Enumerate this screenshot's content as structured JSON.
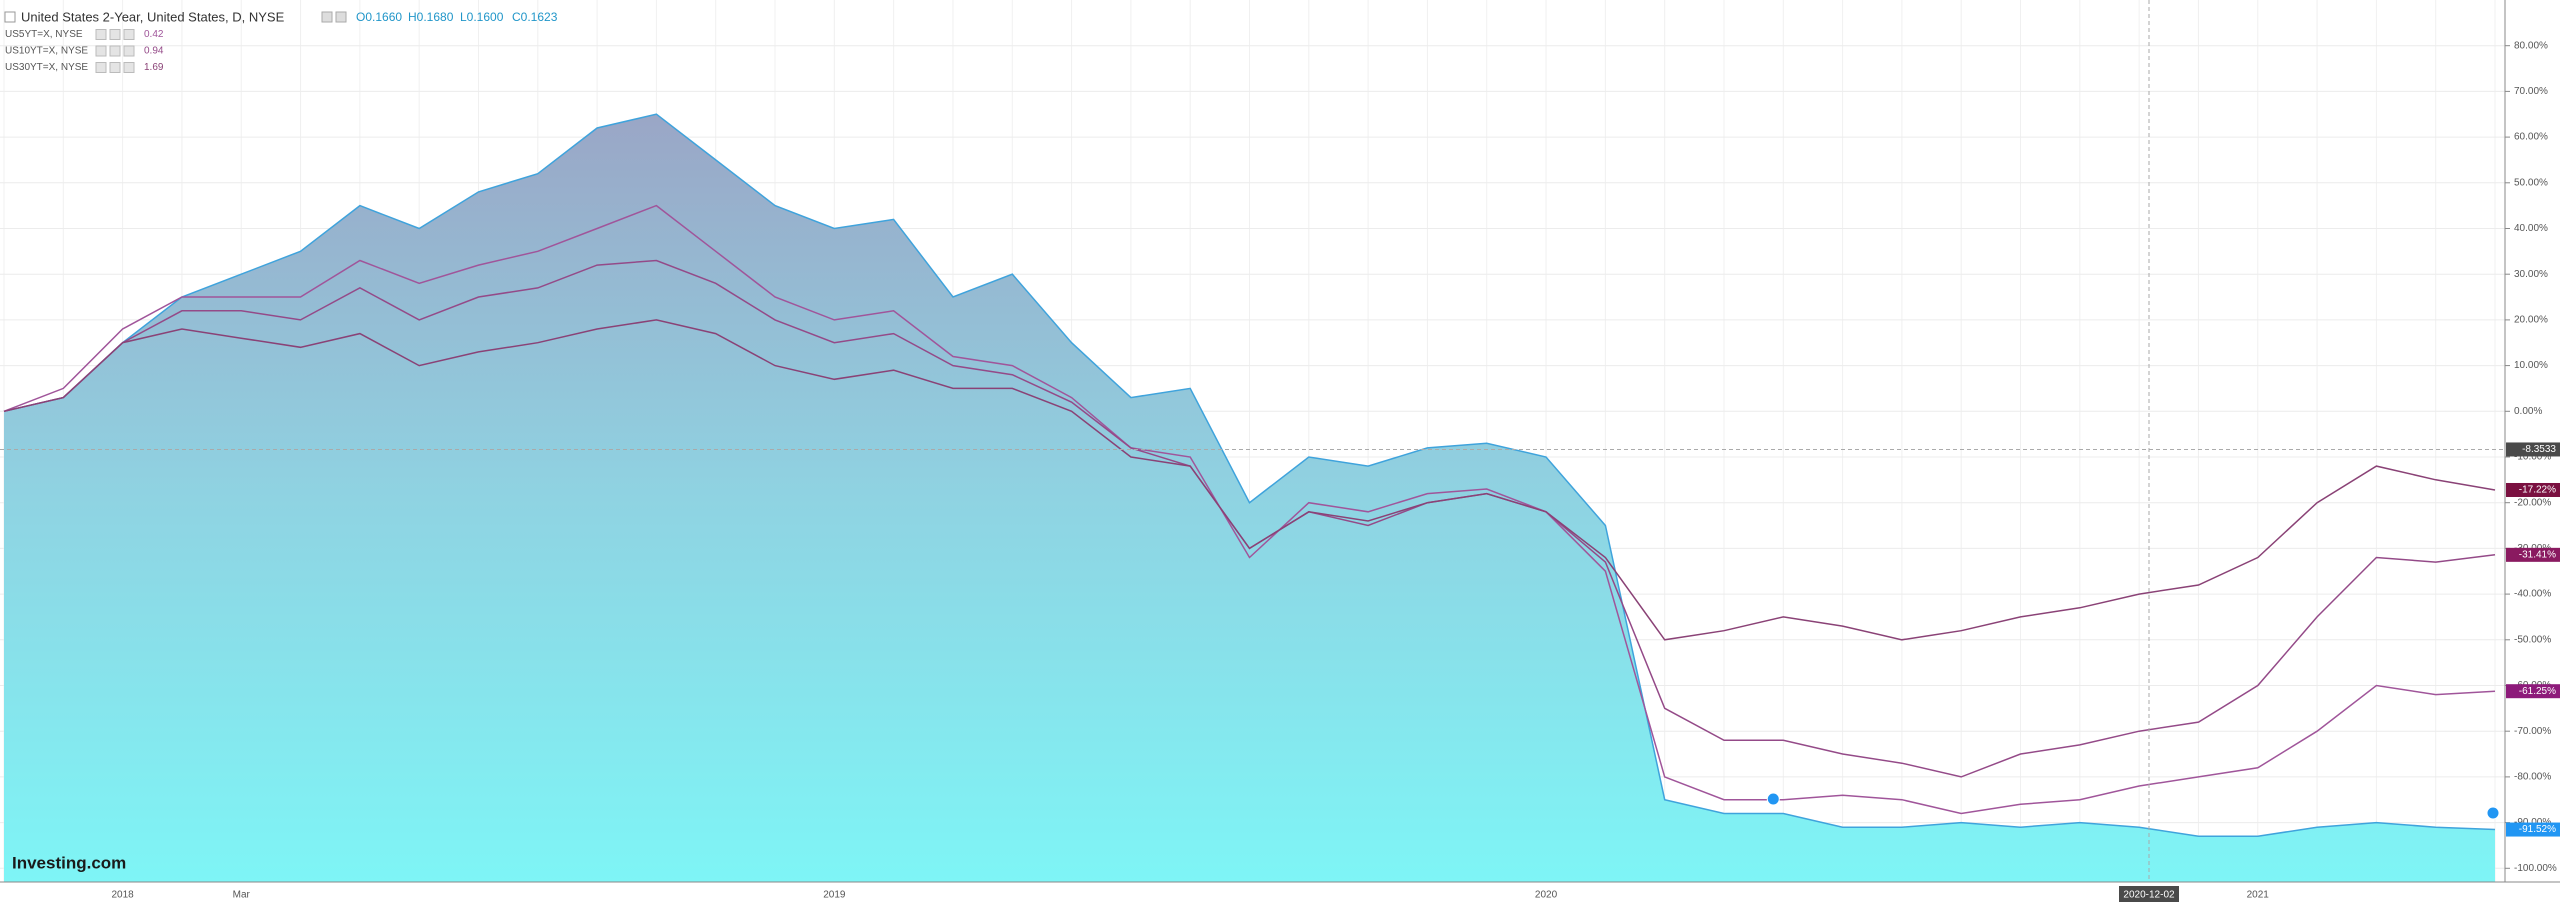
{
  "chart_data": {
    "type": "line",
    "title": "United States 2-Year, United States, D, NYSE",
    "ohlc": [
      "O0.1660",
      "H0.1680",
      "L0.1600",
      "C0.1623"
    ],
    "watermark": "Investing.com",
    "categories": [
      null,
      null,
      "2018",
      null,
      "Mar",
      null,
      null,
      null,
      null,
      null,
      null,
      null,
      null,
      null,
      "2019",
      null,
      null,
      null,
      null,
      null,
      null,
      null,
      null,
      null,
      null,
      null,
      "2020",
      null,
      null,
      null,
      null,
      null,
      null,
      null,
      null,
      null,
      null,
      null,
      "2021",
      null,
      null,
      null,
      null
    ],
    "series": [
      {
        "name": "United States 2-Year, United States, D, NYSE",
        "kind": "area",
        "color": "#3fa3dc",
        "values": [
          0,
          3,
          15,
          25,
          30,
          35,
          45,
          40,
          48,
          52,
          62,
          65,
          55,
          45,
          40,
          42,
          25,
          30,
          15,
          3,
          5,
          -20,
          -10,
          -12,
          -8,
          -7,
          -10,
          -25,
          -85,
          -88,
          -88,
          -91,
          -91,
          -90,
          -91,
          -90,
          -91,
          -93,
          -93,
          -91,
          -90,
          -91,
          -91.52
        ],
        "value_labels": [
          null,
          null,
          null,
          null,
          null,
          null,
          null,
          null,
          null,
          null,
          null,
          null,
          null,
          null,
          null,
          null,
          null,
          null,
          null,
          null,
          null,
          null,
          null,
          null,
          null,
          null,
          null,
          null,
          null,
          null,
          null,
          null,
          null,
          null,
          null,
          null,
          null,
          null,
          null,
          null,
          null,
          null,
          "-91.52%"
        ],
        "label_color": "#2196f3"
      },
      {
        "name": "US5YT=X, NYSE",
        "legend_value": 0.42,
        "color": "#a0559a",
        "values": [
          0,
          5,
          18,
          25,
          25,
          25,
          33,
          28,
          32,
          35,
          40,
          45,
          35,
          25,
          20,
          22,
          12,
          10,
          3,
          -8,
          -10,
          -32,
          -20,
          -22,
          -18,
          -17,
          -22,
          -35,
          -80,
          -85,
          -85,
          -84,
          -85,
          -88,
          -86,
          -85,
          -82,
          -80,
          -78,
          -70,
          -60,
          -62,
          -61.25
        ],
        "value_labels": [
          null,
          null,
          null,
          null,
          null,
          null,
          null,
          null,
          null,
          null,
          null,
          null,
          null,
          null,
          null,
          null,
          null,
          null,
          null,
          null,
          null,
          null,
          null,
          null,
          null,
          null,
          null,
          null,
          null,
          null,
          null,
          null,
          null,
          null,
          null,
          null,
          null,
          null,
          null,
          null,
          null,
          null,
          "-61.25%"
        ],
        "label_color": "#8d1a7a"
      },
      {
        "name": "US10YT=X, NYSE",
        "legend_value": 0.94,
        "color": "#944a88",
        "values": [
          0,
          3,
          15,
          22,
          22,
          20,
          27,
          20,
          25,
          27,
          32,
          33,
          28,
          20,
          15,
          17,
          10,
          8,
          2,
          -8,
          -12,
          -30,
          -22,
          -25,
          -20,
          -18,
          -22,
          -33,
          -65,
          -72,
          -72,
          -75,
          -77,
          -80,
          -75,
          -73,
          -70,
          -68,
          -60,
          -45,
          -32,
          -33,
          -31.41
        ],
        "value_labels": [
          null,
          null,
          null,
          null,
          null,
          null,
          null,
          null,
          null,
          null,
          null,
          null,
          null,
          null,
          null,
          null,
          null,
          null,
          null,
          null,
          null,
          null,
          null,
          null,
          null,
          null,
          null,
          null,
          null,
          null,
          null,
          null,
          null,
          null,
          null,
          null,
          null,
          null,
          null,
          null,
          null,
          null,
          "-31.41%"
        ],
        "label_color": "#8a1a60"
      },
      {
        "name": "US30YT=X, NYSE",
        "legend_value": 1.69,
        "color": "#8a4276",
        "values": [
          0,
          3,
          15,
          18,
          16,
          14,
          17,
          10,
          13,
          15,
          18,
          20,
          17,
          10,
          7,
          9,
          5,
          5,
          0,
          -10,
          -12,
          -30,
          -22,
          -24,
          -20,
          -18,
          -22,
          -32,
          -50,
          -48,
          -45,
          -47,
          -50,
          -48,
          -45,
          -43,
          -40,
          -38,
          -32,
          -20,
          -12,
          -15,
          -17.22
        ],
        "value_labels": [
          null,
          null,
          null,
          null,
          null,
          null,
          null,
          null,
          null,
          null,
          null,
          null,
          null,
          null,
          null,
          null,
          null,
          null,
          null,
          null,
          null,
          null,
          null,
          null,
          null,
          null,
          null,
          null,
          null,
          null,
          null,
          null,
          null,
          null,
          null,
          null,
          null,
          null,
          null,
          null,
          null,
          null,
          "-17.22%"
        ],
        "label_color": "#7a1040"
      }
    ],
    "crosshair": {
      "x_label": "2020-12-02",
      "y": -8.3533
    },
    "ylim": [
      -103,
      90
    ],
    "yticks": [
      {
        "value": 80,
        "label": "80.00%"
      },
      {
        "value": 70,
        "label": "70.00%"
      },
      {
        "value": 60,
        "label": "60.00%"
      },
      {
        "value": 50,
        "label": "50.00%"
      },
      {
        "value": 40,
        "label": "40.00%"
      },
      {
        "value": 30,
        "label": "30.00%"
      },
      {
        "value": 20,
        "label": "20.00%"
      },
      {
        "value": 10,
        "label": "10.00%"
      },
      {
        "value": 0,
        "label": "0.00%"
      },
      {
        "value": -10,
        "label": "-10.00%"
      },
      {
        "value": -20,
        "label": "-20.00%"
      },
      {
        "value": -30,
        "label": "-30.00%"
      },
      {
        "value": -40,
        "label": "-40.00%"
      },
      {
        "value": -50,
        "label": "-50.00%"
      },
      {
        "value": -60,
        "label": "-60.00%"
      },
      {
        "value": -70,
        "label": "-70.00%"
      },
      {
        "value": -80,
        "label": "-80.00%"
      },
      {
        "value": -90,
        "label": "-90.00%"
      },
      {
        "value": -100,
        "label": "-100.00%"
      }
    ],
    "grid": true
  }
}
